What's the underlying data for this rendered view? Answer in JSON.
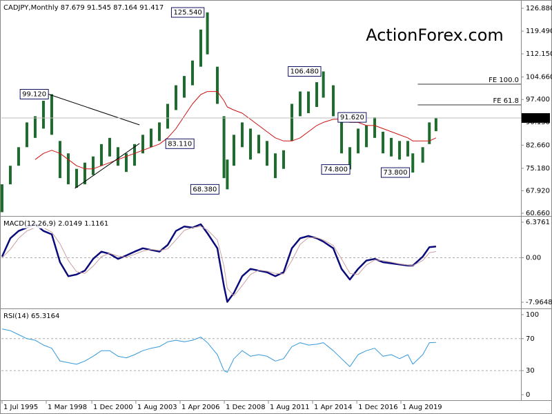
{
  "chart_data": {
    "type": "ohlc",
    "title": "CADJPY,Monthly  87.679 91.545 87.164 91.417",
    "watermark": "ActionForex.com",
    "color": "#1e6b2e",
    "x": [
      1995.5,
      1996.0,
      1996.5,
      1997.0,
      1997.5,
      1998.0,
      1998.5,
      1999.0,
      1999.5,
      2000.0,
      2000.5,
      2001.0,
      2001.5,
      2002.0,
      2002.5,
      2003.0,
      2003.5,
      2004.0,
      2004.5,
      2005.0,
      2005.5,
      2006.0,
      2006.5,
      2007.0,
      2007.5,
      2007.9,
      2008.5,
      2008.9,
      2009.1,
      2009.5,
      2010.0,
      2010.5,
      2011.0,
      2011.5,
      2012.0,
      2012.5,
      2013.0,
      2013.5,
      2014.0,
      2014.5,
      2014.9,
      2015.5,
      2016.0,
      2016.5,
      2017.0,
      2017.5,
      2018.0,
      2018.5,
      2019.0,
      2019.5,
      2020.0,
      2020.3,
      2020.9,
      2021.3,
      2021.7
    ],
    "low": [
      61.0,
      70,
      76,
      82,
      85,
      88,
      86,
      72,
      70,
      68.9,
      70,
      73,
      76,
      79,
      76,
      74,
      76,
      80,
      82,
      84,
      88,
      94,
      98,
      102,
      108,
      112,
      96,
      72,
      68.38,
      76,
      82,
      78,
      80,
      76,
      72,
      75,
      84,
      92,
      93,
      95,
      98,
      92,
      80,
      74.8,
      80,
      82,
      85,
      80,
      79,
      78,
      79,
      73.8,
      77,
      83,
      87.164
    ],
    "high": [
      70,
      76,
      82,
      90,
      92,
      97,
      99.12,
      84,
      80,
      75,
      77,
      79,
      83,
      85,
      82,
      80,
      83,
      86,
      88,
      90,
      96,
      102,
      105,
      110,
      120,
      125.54,
      108,
      92,
      78,
      86,
      90,
      88,
      86,
      84,
      80,
      81,
      96,
      100,
      100,
      103,
      106.48,
      102,
      92,
      82,
      88,
      89,
      91.62,
      87,
      85,
      84,
      84,
      80,
      82,
      90,
      91.545
    ],
    "series": [
      {
        "color": "#d01010",
        "values": [
          null,
          null,
          null,
          null,
          78,
          80,
          81,
          80,
          78,
          76,
          75,
          75,
          76,
          77,
          78,
          79,
          80,
          81,
          82,
          83,
          85,
          88,
          92,
          96,
          99,
          100,
          100,
          97,
          95,
          94,
          93,
          91,
          89,
          87,
          85,
          84,
          84,
          85,
          87,
          89,
          90,
          91,
          91,
          90,
          90,
          89,
          89,
          88,
          87,
          86,
          85,
          84,
          84,
          84,
          85
        ]
      }
    ],
    "last": 91.417,
    "xlim": [
      1995.46,
      2026.83
    ],
    "xticks": [
      {
        "value": 1995.5,
        "label": "1 Jul 1995"
      },
      {
        "value": 1998.17,
        "label": "1 Mar 1998"
      },
      {
        "value": 2000.92,
        "label": "1 Dec 2000"
      },
      {
        "value": 2003.58,
        "label": "1 Aug 2003"
      },
      {
        "value": 2006.25,
        "label": "1 Apr 2006"
      },
      {
        "value": 2008.92,
        "label": "1 Dec 2008"
      },
      {
        "value": 2011.58,
        "label": "1 Aug 2011"
      },
      {
        "value": 2014.25,
        "label": "1 Apr 2014"
      },
      {
        "value": 2016.92,
        "label": "1 Dec 2016"
      },
      {
        "value": 2019.58,
        "label": "1 Aug 2019"
      }
    ],
    "ylim": [
      59.77,
      129.11
    ],
    "yticks": [
      {
        "value": 126.88,
        "label": "126.880"
      },
      {
        "value": 119.49,
        "label": "119.490"
      },
      {
        "value": 112.15,
        "label": "112.150"
      },
      {
        "value": 104.66,
        "label": "104.660"
      },
      {
        "value": 97.4,
        "label": "97.400"
      },
      {
        "value": 90.13,
        "label": "90.130"
      },
      {
        "value": 82.66,
        "label": "82.660"
      },
      {
        "value": 75.18,
        "label": "75.180"
      },
      {
        "value": 67.92,
        "label": "67.920"
      },
      {
        "value": 60.66,
        "label": "60.660"
      }
    ],
    "annotations": [
      {
        "x": 1998.3,
        "value": 99.12,
        "label": "99.120"
      },
      {
        "x": 2007.7,
        "value": 125.54,
        "label": "125.540"
      },
      {
        "x": 2005.3,
        "value": 83.11,
        "label": "83.110"
      },
      {
        "x": 2008.6,
        "value": 68.38,
        "label": "68.380"
      },
      {
        "x": 2014.75,
        "value": 106.48,
        "label": "106.480"
      },
      {
        "x": 2015.7,
        "value": 91.62,
        "label": "91.620"
      },
      {
        "x": 2016.5,
        "value": 74.8,
        "label": "74.800"
      },
      {
        "x": 2020.1,
        "value": 73.8,
        "label": "73.800"
      }
    ],
    "fe_levels": [
      {
        "label": "FE 100.0",
        "value": 102.35,
        "x": 2020.6
      },
      {
        "label": "FE 61.8",
        "value": 95.67,
        "x": 2020.6
      }
    ],
    "trendlines": [
      {
        "x": [
          1998.3,
          2003.8
        ],
        "y": [
          99.12,
          89.2
        ]
      },
      {
        "x": [
          1999.9,
          2003.8
        ],
        "y": [
          68.7,
          83.2
        ]
      }
    ],
    "indicators": [
      {
        "type": "line",
        "title": "MACD(12,26,9) 2.0149 1.1161",
        "ylim": [
          -9.08,
          7.24
        ],
        "grid": true,
        "yticks": [
          6.3761,
          {
            "value": 0,
            "label": "0.00"
          },
          -7.9648
        ],
        "series": [
          {
            "color": "#0a0a7a",
            "width": 2.5,
            "values": [
              0.2,
              3.5,
              4.8,
              5.4,
              6.0,
              4.8,
              4.2,
              -0.8,
              -3.3,
              -3.0,
              -2.3,
              -0.2,
              1.1,
              0.7,
              -0.2,
              0.4,
              1.1,
              1.7,
              1.4,
              1.1,
              2.3,
              4.8,
              5.6,
              5.4,
              6.0,
              4.4,
              1.7,
              -5.1,
              -7.9,
              -6.3,
              -3.3,
              -2.0,
              -2.3,
              -2.6,
              -3.3,
              -2.6,
              1.7,
              3.5,
              3.9,
              3.5,
              2.9,
              1.7,
              -2.0,
              -3.9,
              -2.0,
              -0.5,
              -0.2,
              -0.8,
              -1.0,
              -1.2,
              -1.4,
              -1.4,
              0.2,
              1.9,
              2.0149
            ]
          },
          {
            "color": "#c9a0a0",
            "width": 1,
            "values": [
              0.0,
              1.5,
              3.5,
              4.8,
              5.4,
              5.4,
              4.6,
              2.5,
              -0.5,
              -2.5,
              -2.8,
              -1.5,
              0.2,
              0.8,
              0.3,
              0.1,
              0.6,
              1.2,
              1.5,
              1.3,
              1.6,
              3.2,
              4.9,
              5.4,
              5.6,
              5.0,
              3.2,
              -1.5,
              -5.5,
              -6.8,
              -5.0,
              -3.0,
              -2.2,
              -2.4,
              -2.8,
              -2.9,
              -0.5,
              2.4,
              3.6,
              3.6,
              3.2,
              2.2,
              -0.2,
              -2.8,
              -3.0,
              -1.3,
              -0.4,
              -0.5,
              -0.8,
              -1.1,
              -1.3,
              -1.4,
              -0.5,
              0.9,
              1.1161
            ]
          }
        ]
      },
      {
        "type": "line",
        "title": "RSI(14) 65.3164",
        "ylim": [
          -6.9,
          106
        ],
        "grid": true,
        "yticks": [
          100,
          70,
          30,
          0
        ],
        "series": [
          {
            "color": "#3399dd",
            "width": 1,
            "values": [
              82,
              80,
              75,
              70,
              68,
              62,
              58,
              42,
              40,
              38,
              42,
              48,
              55,
              55,
              48,
              46,
              50,
              55,
              58,
              60,
              66,
              68,
              66,
              68,
              72,
              65,
              50,
              30,
              28,
              45,
              55,
              48,
              50,
              48,
              42,
              45,
              60,
              65,
              62,
              63,
              65,
              55,
              45,
              35,
              50,
              55,
              58,
              48,
              50,
              45,
              50,
              38,
              50,
              65,
              65.3164
            ]
          }
        ]
      }
    ]
  }
}
